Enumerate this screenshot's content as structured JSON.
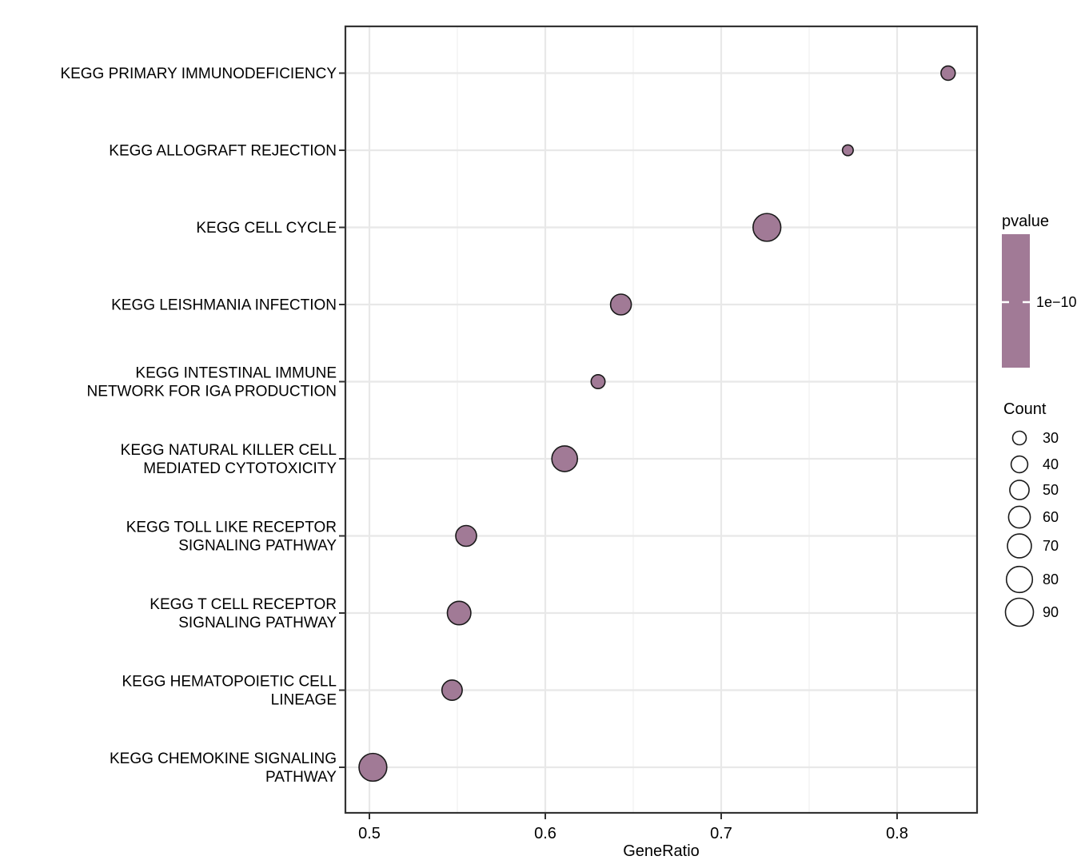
{
  "figure": {
    "background": "#FFFFFF"
  },
  "chart_data": {
    "type": "scatter",
    "title": "",
    "xlabel": "GeneRatio",
    "ylabel": "",
    "grid": "on",
    "legend_position": "right",
    "x_axis": {
      "ticks": [
        0.5,
        0.6,
        0.7,
        0.8
      ],
      "tick_labels": [
        "0.5",
        "0.6",
        "0.7",
        "0.8"
      ],
      "minor_ticks": [
        0.55,
        0.65,
        0.75
      ],
      "range": [
        0.4864,
        0.8455
      ]
    },
    "categories": [
      "KEGG PRIMARY IMMUNODEFICIENCY",
      "KEGG ALLOGRAFT REJECTION",
      "KEGG CELL CYCLE",
      "KEGG LEISHMANIA INFECTION",
      "KEGG INTESTINAL IMMUNE\nNETWORK FOR IGA PRODUCTION",
      "KEGG NATURAL KILLER CELL\nMEDIATED CYTOTOXICITY",
      "KEGG TOLL LIKE RECEPTOR\nSIGNALING PATHWAY",
      "KEGG T CELL RECEPTOR\nSIGNALING PATHWAY",
      "KEGG HEMATOPOIETIC CELL\nLINEAGE",
      "KEGG CHEMOKINE SIGNALING\nPATHWAY"
    ],
    "points": [
      {
        "pathway": "KEGG PRIMARY IMMUNODEFICIENCY",
        "gene_ratio": 0.829,
        "count": 32
      },
      {
        "pathway": "KEGG ALLOGRAFT REJECTION",
        "gene_ratio": 0.772,
        "count": 22
      },
      {
        "pathway": "KEGG CELL CYCLE",
        "gene_ratio": 0.726,
        "count": 89
      },
      {
        "pathway": "KEGG LEISHMANIA INFECTION",
        "gene_ratio": 0.643,
        "count": 56
      },
      {
        "pathway": "KEGG INTESTINAL IMMUNE NETWORK FOR IGA PRODUCTION",
        "gene_ratio": 0.63,
        "count": 31
      },
      {
        "pathway": "KEGG NATURAL KILLER CELL MEDIATED CYTOTOXICITY",
        "gene_ratio": 0.611,
        "count": 78
      },
      {
        "pathway": "KEGG TOLL LIKE RECEPTOR SIGNALING PATHWAY",
        "gene_ratio": 0.555,
        "count": 56
      },
      {
        "pathway": "KEGG T CELL RECEPTOR SIGNALING PATHWAY",
        "gene_ratio": 0.551,
        "count": 68
      },
      {
        "pathway": "KEGG HEMATOPOIETIC CELL LINEAGE",
        "gene_ratio": 0.547,
        "count": 54
      },
      {
        "pathway": "KEGG CHEMOKINE SIGNALING PATHWAY",
        "gene_ratio": 0.502,
        "count": 89
      }
    ]
  },
  "legends": {
    "pvalue": {
      "title": "pvalue",
      "tick_labels": [
        "1e−10"
      ],
      "bar_color": "#A17A96"
    },
    "count": {
      "title": "Count",
      "sizes": [
        30,
        40,
        50,
        60,
        70,
        80,
        90
      ],
      "size_labels": [
        "30",
        "40",
        "50",
        "60",
        "70",
        "80",
        "90"
      ]
    }
  },
  "style": {
    "point_fill": "#A17A96",
    "point_stroke": "#1A1A1A",
    "grid_major_color": "#E8E8E8",
    "grid_minor_color": "#EFEFEF",
    "panel_border_color": "#333333",
    "text_color": "#000000",
    "colorbar_tick_color": "#FFFFFF"
  }
}
